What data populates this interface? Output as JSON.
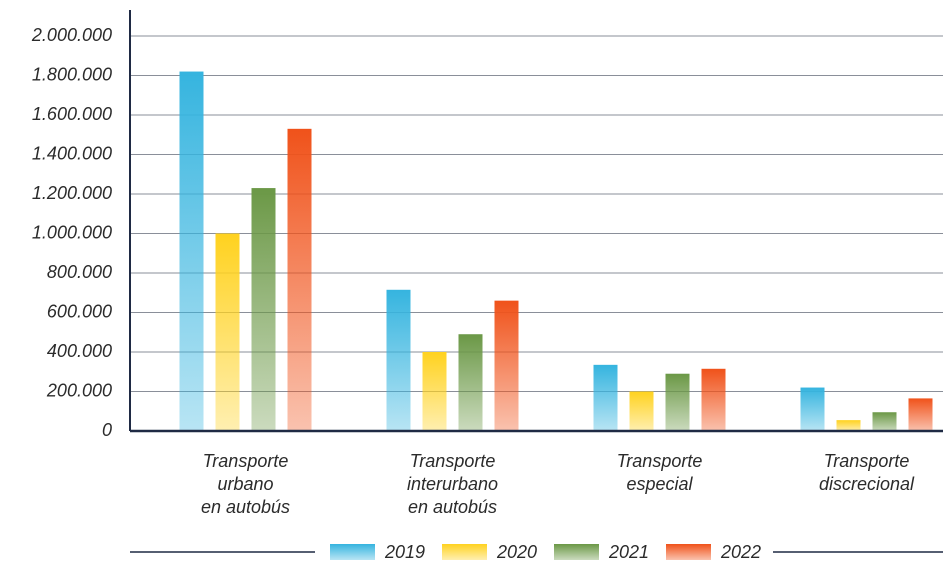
{
  "chart_data": {
    "type": "bar",
    "categories": [
      [
        "Transporte",
        "urbano",
        "en autobús"
      ],
      [
        "Transporte",
        "interurbano",
        "en autobús"
      ],
      [
        "Transporte",
        "especial"
      ],
      [
        "Transporte",
        "discrecional"
      ]
    ],
    "series": [
      {
        "name": "2019",
        "color": "#35b4df",
        "values": [
          1820000,
          715000,
          335000,
          220000
        ]
      },
      {
        "name": "2020",
        "color": "#ffd21f",
        "values": [
          1000000,
          400000,
          200000,
          55000
        ]
      },
      {
        "name": "2021",
        "color": "#6b9846",
        "values": [
          1230000,
          490000,
          290000,
          95000
        ]
      },
      {
        "name": "2022",
        "color": "#f0521a",
        "values": [
          1530000,
          660000,
          315000,
          165000
        ]
      }
    ],
    "ylim": [
      0,
      2000000
    ],
    "yticks": [
      0,
      {
        "value": 200000,
        "label": "200.000"
      },
      {
        "value": 400000,
        "label": "400.000"
      },
      {
        "value": 600000,
        "label": "600.000"
      },
      {
        "value": 800000,
        "label": "800.000"
      },
      {
        "value": 1000000,
        "label": "1.000.000"
      },
      {
        "value": 1200000,
        "label": "1.200.000"
      },
      {
        "value": 1400000,
        "label": "1.400.000"
      },
      {
        "value": 1600000,
        "label": "1.600.000"
      },
      {
        "value": 1800000,
        "label": "1.800.000"
      },
      {
        "value": 2000000,
        "label": "2.000.000"
      }
    ],
    "grid": true,
    "legend": "bottom"
  }
}
